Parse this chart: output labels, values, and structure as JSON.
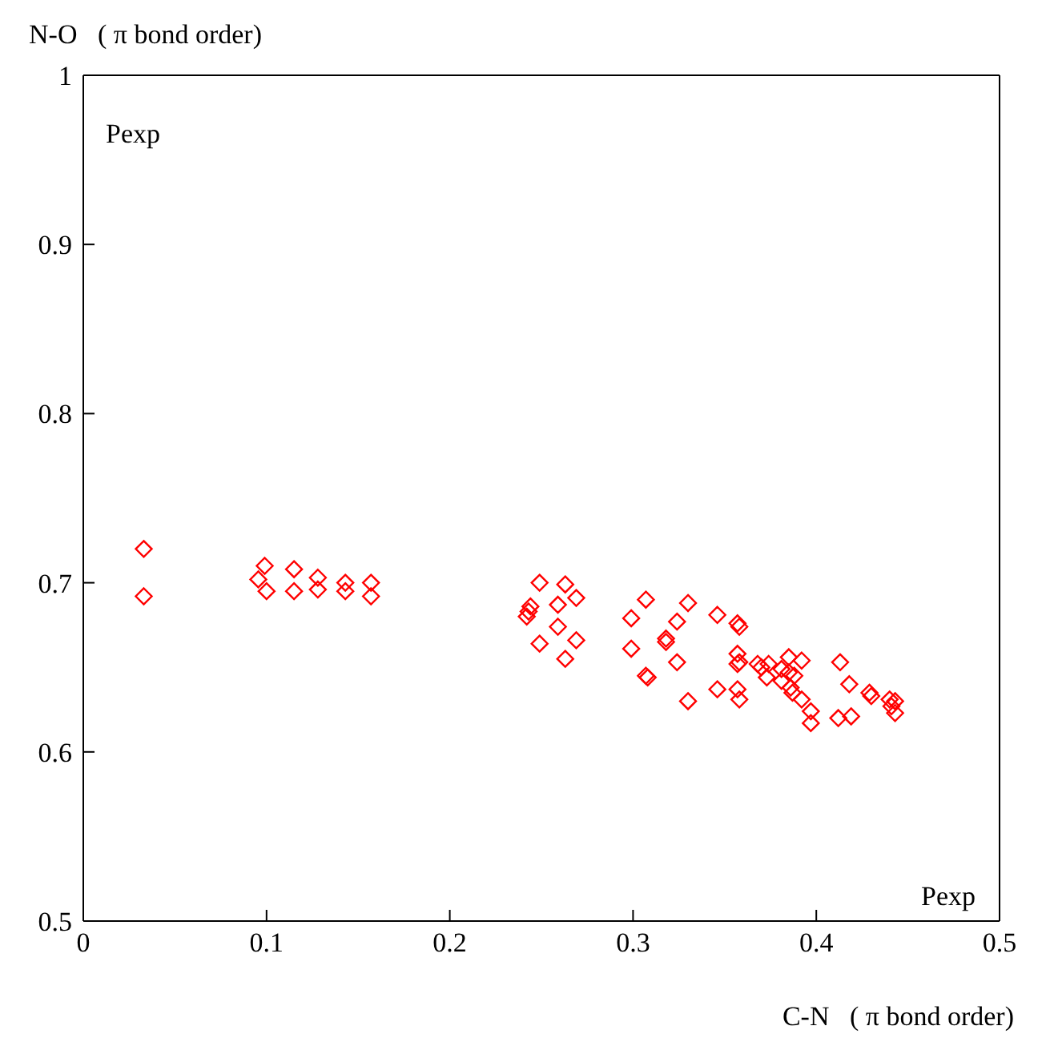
{
  "chart_data": {
    "type": "scatter",
    "xlabel": "C-N   ( π bond order)",
    "ylabel": "N-O   ( π bond order)",
    "annotations": [
      "Pexp",
      "Pexp"
    ],
    "xlim": [
      0,
      0.5
    ],
    "xticks": [
      0,
      0.1,
      0.2,
      0.3,
      0.4,
      0.5
    ],
    "ylim": [
      0.5,
      1
    ],
    "yticks": [
      0.5,
      0.6,
      0.7,
      0.8,
      0.9,
      1
    ],
    "grid": false,
    "legend": false,
    "marker": "diamond",
    "series": [
      {
        "color": "#ff0000",
        "x": [
          0.033,
          0.033,
          0.0955,
          0.099,
          0.1,
          0.115,
          0.115,
          0.128,
          0.128,
          0.143,
          0.143,
          0.157,
          0.157,
          0.249,
          0.263,
          0.269,
          0.242,
          0.243,
          0.244,
          0.259,
          0.259,
          0.269,
          0.249,
          0.263,
          0.307,
          0.33,
          0.299,
          0.324,
          0.318,
          0.318,
          0.299,
          0.324,
          0.307,
          0.308,
          0.33,
          0.346,
          0.357,
          0.358,
          0.346,
          0.357,
          0.358,
          0.357,
          0.358,
          0.357,
          0.368,
          0.37,
          0.374,
          0.373,
          0.381,
          0.385,
          0.392,
          0.385,
          0.388,
          0.381,
          0.386,
          0.387,
          0.392,
          0.397,
          0.397,
          0.413,
          0.418,
          0.429,
          0.43,
          0.412,
          0.419,
          0.44,
          0.441,
          0.443,
          0.443
        ],
        "values": [
          0.72,
          0.692,
          0.702,
          0.71,
          0.695,
          0.708,
          0.695,
          0.703,
          0.696,
          0.7,
          0.695,
          0.7,
          0.692,
          0.7,
          0.699,
          0.691,
          0.68,
          0.683,
          0.686,
          0.687,
          0.674,
          0.666,
          0.664,
          0.655,
          0.69,
          0.688,
          0.679,
          0.677,
          0.667,
          0.665,
          0.661,
          0.653,
          0.645,
          0.644,
          0.63,
          0.681,
          0.676,
          0.674,
          0.637,
          0.637,
          0.631,
          0.658,
          0.653,
          0.652,
          0.652,
          0.65,
          0.652,
          0.644,
          0.649,
          0.656,
          0.654,
          0.647,
          0.645,
          0.642,
          0.638,
          0.635,
          0.631,
          0.624,
          0.617,
          0.653,
          0.64,
          0.635,
          0.633,
          0.62,
          0.621,
          0.631,
          0.627,
          0.63,
          0.623
        ]
      }
    ]
  }
}
